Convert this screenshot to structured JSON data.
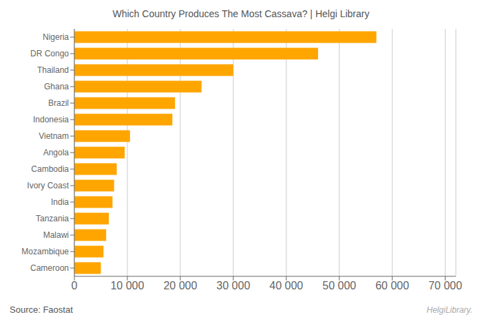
{
  "chart_data": {
    "type": "bar",
    "title": "Which Country Produces The Most Cassava? | Helgi Library",
    "orientation": "horizontal",
    "categories": [
      "Nigeria",
      "DR Congo",
      "Thailand",
      "Ghana",
      "Brazil",
      "Indonesia",
      "Vietnam",
      "Angola",
      "Cambodia",
      "Ivory Coast",
      "India",
      "Tanzania",
      "Malawi",
      "Mozambique",
      "Cameroon"
    ],
    "values": [
      57000,
      46000,
      30000,
      24000,
      19000,
      18500,
      10500,
      9500,
      8000,
      7500,
      7200,
      6500,
      6000,
      5500,
      5000
    ],
    "color": "#FFA500",
    "xlim": [
      0,
      72000
    ],
    "xticks": [
      0,
      {
        "value": 10000,
        "label": "10 000"
      },
      {
        "value": 20000,
        "label": "20 000"
      },
      {
        "value": 30000,
        "label": "30 000"
      },
      {
        "value": 40000,
        "label": "40 000"
      },
      {
        "value": 50000,
        "label": "50 000"
      },
      {
        "value": 60000,
        "label": "60 000"
      },
      {
        "value": 70000,
        "label": "70 000"
      }
    ],
    "grid": true,
    "annotations": [
      "Source: Faostat",
      "HelgiLibrary."
    ]
  }
}
